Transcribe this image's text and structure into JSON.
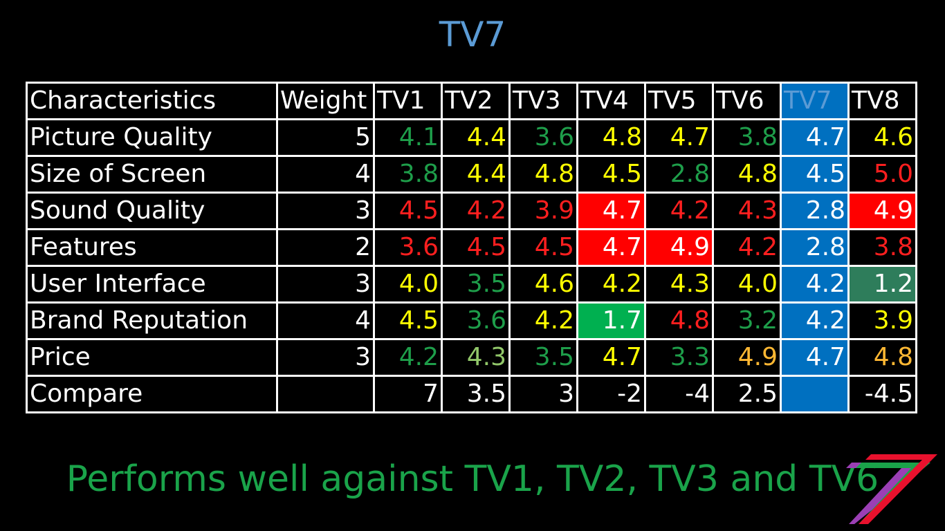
{
  "slide": {
    "title": "TV7",
    "conclusion": "Performs well against TV1, TV2, TV3 and TV6",
    "logo": {
      "icon": "tv7-logo-icon",
      "colors": [
        "#9b3fb5",
        "#1aa34a",
        "#e8112d"
      ]
    }
  },
  "table": {
    "header": [
      "Characteristics",
      "Weight",
      "TV1",
      "TV2",
      "TV3",
      "TV4",
      "TV5",
      "TV6",
      "TV7",
      "TV8"
    ],
    "highlight_column": "TV7",
    "rows": [
      {
        "characteristic": "Picture Quality",
        "weight": "5",
        "cells": [
          {
            "v": "4.1",
            "color": "green"
          },
          {
            "v": "4.4",
            "color": "yellow"
          },
          {
            "v": "3.6",
            "color": "green"
          },
          {
            "v": "4.8",
            "color": "yellow"
          },
          {
            "v": "4.7",
            "color": "yellow"
          },
          {
            "v": "3.8",
            "color": "green"
          },
          {
            "v": "4.7",
            "color": "white",
            "bg": "blue"
          },
          {
            "v": "4.6",
            "color": "yellow"
          }
        ]
      },
      {
        "characteristic": "Size of Screen",
        "weight": "4",
        "cells": [
          {
            "v": "3.8",
            "color": "green"
          },
          {
            "v": "4.4",
            "color": "yellow"
          },
          {
            "v": "4.8",
            "color": "yellow"
          },
          {
            "v": "4.5",
            "color": "yellow"
          },
          {
            "v": "2.8",
            "color": "green"
          },
          {
            "v": "4.8",
            "color": "yellow"
          },
          {
            "v": "4.5",
            "color": "white",
            "bg": "blue"
          },
          {
            "v": "5.0",
            "color": "red"
          }
        ]
      },
      {
        "characteristic": "Sound Quality",
        "weight": "3",
        "cells": [
          {
            "v": "4.5",
            "color": "red"
          },
          {
            "v": "4.2",
            "color": "red"
          },
          {
            "v": "3.9",
            "color": "red"
          },
          {
            "v": "4.7",
            "color": "white",
            "bg": "red"
          },
          {
            "v": "4.2",
            "color": "red"
          },
          {
            "v": "4.3",
            "color": "red"
          },
          {
            "v": "2.8",
            "color": "white",
            "bg": "blue"
          },
          {
            "v": "4.9",
            "color": "white",
            "bg": "red"
          }
        ]
      },
      {
        "characteristic": "Features",
        "weight": "2",
        "cells": [
          {
            "v": "3.6",
            "color": "red"
          },
          {
            "v": "4.5",
            "color": "red"
          },
          {
            "v": "4.5",
            "color": "red"
          },
          {
            "v": "4.7",
            "color": "white",
            "bg": "red"
          },
          {
            "v": "4.9",
            "color": "white",
            "bg": "red"
          },
          {
            "v": "4.2",
            "color": "red"
          },
          {
            "v": "2.8",
            "color": "white",
            "bg": "blue"
          },
          {
            "v": "3.8",
            "color": "red"
          }
        ]
      },
      {
        "characteristic": "User Interface",
        "weight": "3",
        "cells": [
          {
            "v": "4.0",
            "color": "yellow"
          },
          {
            "v": "3.5",
            "color": "green"
          },
          {
            "v": "4.6",
            "color": "yellow"
          },
          {
            "v": "4.2",
            "color": "yellow"
          },
          {
            "v": "4.3",
            "color": "yellow"
          },
          {
            "v": "4.0",
            "color": "yellow"
          },
          {
            "v": "4.2",
            "color": "white",
            "bg": "blue"
          },
          {
            "v": "1.2",
            "color": "white",
            "bg": "teal"
          }
        ]
      },
      {
        "characteristic": "Brand Reputation",
        "weight": "4",
        "cells": [
          {
            "v": "4.5",
            "color": "yellow"
          },
          {
            "v": "3.6",
            "color": "green"
          },
          {
            "v": "4.2",
            "color": "yellow"
          },
          {
            "v": "1.7",
            "color": "white",
            "bg": "green"
          },
          {
            "v": "4.8",
            "color": "red"
          },
          {
            "v": "3.2",
            "color": "green"
          },
          {
            "v": "4.2",
            "color": "white",
            "bg": "blue"
          },
          {
            "v": "3.9",
            "color": "yellow"
          }
        ]
      },
      {
        "characteristic": "Price",
        "weight": "3",
        "cells": [
          {
            "v": "4.2",
            "color": "green"
          },
          {
            "v": "4.3",
            "color": "lightgreen"
          },
          {
            "v": "3.5",
            "color": "green"
          },
          {
            "v": "4.7",
            "color": "yellow"
          },
          {
            "v": "3.3",
            "color": "green"
          },
          {
            "v": "4.9",
            "color": "orange"
          },
          {
            "v": "4.7",
            "color": "white",
            "bg": "blue"
          },
          {
            "v": "4.8",
            "color": "orange"
          }
        ]
      },
      {
        "characteristic": "Compare",
        "weight": "",
        "cells": [
          {
            "v": "7",
            "color": "white"
          },
          {
            "v": "3.5",
            "color": "white"
          },
          {
            "v": "3",
            "color": "white"
          },
          {
            "v": "-2",
            "color": "white"
          },
          {
            "v": "-4",
            "color": "white"
          },
          {
            "v": "2.5",
            "color": "white"
          },
          {
            "v": "",
            "color": "white",
            "bg": "blue"
          },
          {
            "v": "-4.5",
            "color": "white"
          }
        ]
      }
    ]
  },
  "palette": {
    "title": "#5b9bd5",
    "conclusion": "#1aa34a",
    "green": "#1e9e4a",
    "yellow": "#ffff00",
    "red": "#ff1f1f",
    "lightgreen": "#92c86a",
    "orange": "#ffb833",
    "bg_red": "#ff0000",
    "bg_green": "#00b050",
    "bg_blue": "#0070c0",
    "bg_teal": "#2e7d5b"
  }
}
